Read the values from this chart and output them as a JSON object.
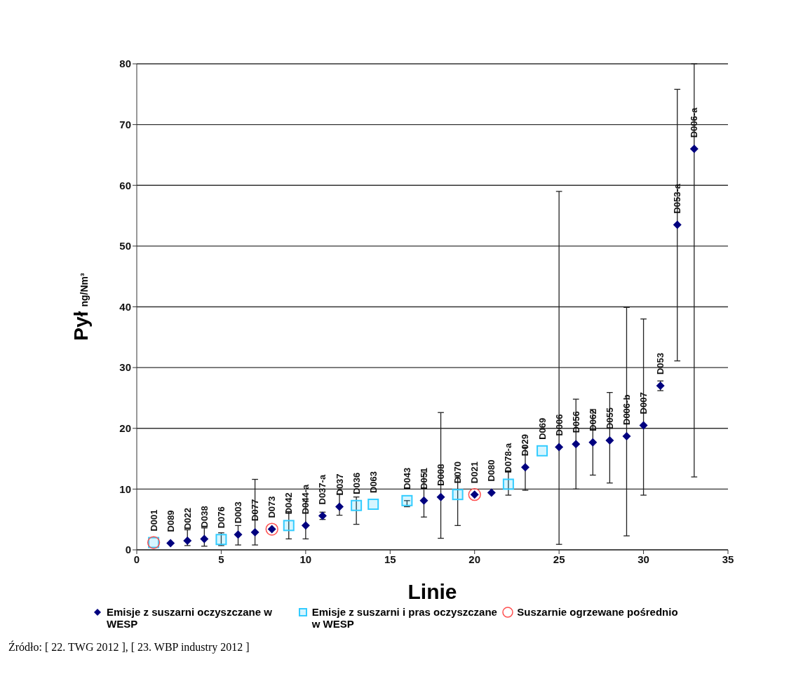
{
  "chart_data": {
    "type": "scatter",
    "xlabel": "Linie",
    "ylabel": "Pył ng/Nm³",
    "xlim": [
      0,
      35
    ],
    "ylim": [
      0,
      80
    ],
    "xticks": [
      0,
      5,
      10,
      15,
      20,
      25,
      30,
      35
    ],
    "yticks": [
      0,
      10,
      20,
      30,
      40,
      50,
      60,
      70,
      80
    ],
    "grid": "y",
    "legend": "bottom",
    "series": [
      {
        "name": "Emisje z suszarni oczyszczane w WESP",
        "color": "#00007f",
        "marker": "diamond",
        "x": [
          2,
          3,
          4,
          6,
          7,
          8,
          10,
          11,
          12,
          17,
          18,
          20,
          21,
          23,
          25,
          26,
          27,
          28,
          29,
          30,
          31,
          32,
          33
        ],
        "values": [
          1.1,
          1.5,
          1.8,
          2.5,
          2.9,
          3.4,
          4.0,
          5.6,
          7.1,
          8.1,
          8.7,
          9.1,
          9.4,
          13.6,
          16.9,
          17.4,
          17.7,
          18.0,
          18.7,
          20.5,
          27.0,
          53.5,
          66.0
        ],
        "errors": [
          null,
          [
            0.7,
            3.3
          ],
          [
            0.6,
            3.6
          ],
          [
            0.8,
            4.0
          ],
          [
            0.8,
            11.6
          ],
          null,
          [
            1.8,
            8.0
          ],
          [
            5.0,
            6.2
          ],
          [
            5.7,
            9.2
          ],
          [
            5.4,
            12.8
          ],
          [
            1.9,
            22.6
          ],
          null,
          null,
          [
            9.8,
            16.9
          ],
          [
            0.9,
            59.0
          ],
          [
            10.0,
            24.8
          ],
          [
            12.3,
            23.1
          ],
          [
            11.0,
            25.9
          ],
          [
            2.3,
            39.9
          ],
          [
            9.0,
            38.0
          ],
          [
            26.2,
            27.8
          ],
          [
            31.1,
            75.8
          ],
          [
            12.0,
            80.0
          ]
        ]
      },
      {
        "name": "Emisje z suszarni i pras oczyszczane w WESP",
        "color": "#33ccff",
        "marker": "square",
        "x": [
          1,
          5,
          9,
          13,
          14,
          16,
          19,
          22,
          24
        ],
        "values": [
          1.2,
          1.7,
          4.0,
          7.3,
          7.5,
          8.1,
          9.1,
          10.8,
          16.3
        ],
        "errors": [
          null,
          [
            0.7,
            2.8
          ],
          [
            1.8,
            6.3
          ],
          [
            4.2,
            8.7
          ],
          null,
          [
            7.1,
            8.1
          ],
          [
            4.0,
            12.0
          ],
          [
            9.0,
            13.0
          ],
          null
        ]
      },
      {
        "name": "Suszarnie ogrzewane pośrednio",
        "color": "#ff5050",
        "marker": "circle",
        "x": [
          1,
          8,
          20
        ],
        "values": [
          1.2,
          3.4,
          9.1
        ]
      }
    ],
    "annotations": [
      {
        "text": "D001",
        "x": 1,
        "y": 1.2
      },
      {
        "text": "D089",
        "x": 2,
        "y": 1.1
      },
      {
        "text": "D022",
        "x": 3,
        "y": 1.5
      },
      {
        "text": "D038",
        "x": 4,
        "y": 1.8
      },
      {
        "text": "D076",
        "x": 5,
        "y": 1.7
      },
      {
        "text": "D003",
        "x": 6,
        "y": 2.5
      },
      {
        "text": "D077",
        "x": 7,
        "y": 2.9
      },
      {
        "text": "D073",
        "x": 8,
        "y": 3.4
      },
      {
        "text": "D042",
        "x": 9,
        "y": 4.0
      },
      {
        "text": "D044-a",
        "x": 10,
        "y": 4.0
      },
      {
        "text": "D037-a",
        "x": 11,
        "y": 5.6
      },
      {
        "text": "D037",
        "x": 12,
        "y": 7.1
      },
      {
        "text": "D036",
        "x": 13,
        "y": 7.3
      },
      {
        "text": "D063",
        "x": 14,
        "y": 7.5
      },
      {
        "text": "D043",
        "x": 16,
        "y": 8.1
      },
      {
        "text": "D051",
        "x": 17,
        "y": 8.1
      },
      {
        "text": "D008",
        "x": 18,
        "y": 8.7
      },
      {
        "text": "D070",
        "x": 19,
        "y": 9.1
      },
      {
        "text": "D021",
        "x": 20,
        "y": 9.1
      },
      {
        "text": "D080",
        "x": 21,
        "y": 9.4
      },
      {
        "text": "D078-a",
        "x": 22,
        "y": 10.8
      },
      {
        "text": "D029",
        "x": 23,
        "y": 13.6
      },
      {
        "text": "D069",
        "x": 24,
        "y": 16.3
      },
      {
        "text": "D006",
        "x": 25,
        "y": 16.9
      },
      {
        "text": "D056",
        "x": 26,
        "y": 17.4
      },
      {
        "text": "D062",
        "x": 27,
        "y": 17.7
      },
      {
        "text": "D055",
        "x": 28,
        "y": 18.0
      },
      {
        "text": "D006-b",
        "x": 29,
        "y": 18.7
      },
      {
        "text": "D007",
        "x": 30,
        "y": 20.5
      },
      {
        "text": "D053",
        "x": 31,
        "y": 27.0
      },
      {
        "text": "D053-a",
        "x": 32,
        "y": 53.5
      },
      {
        "text": "D006-a",
        "x": 33,
        "y": 66.0
      },
      "Źródło: [ 22. TWG 2012 ], [ 23. WBP industry 2012 ]"
    ]
  }
}
